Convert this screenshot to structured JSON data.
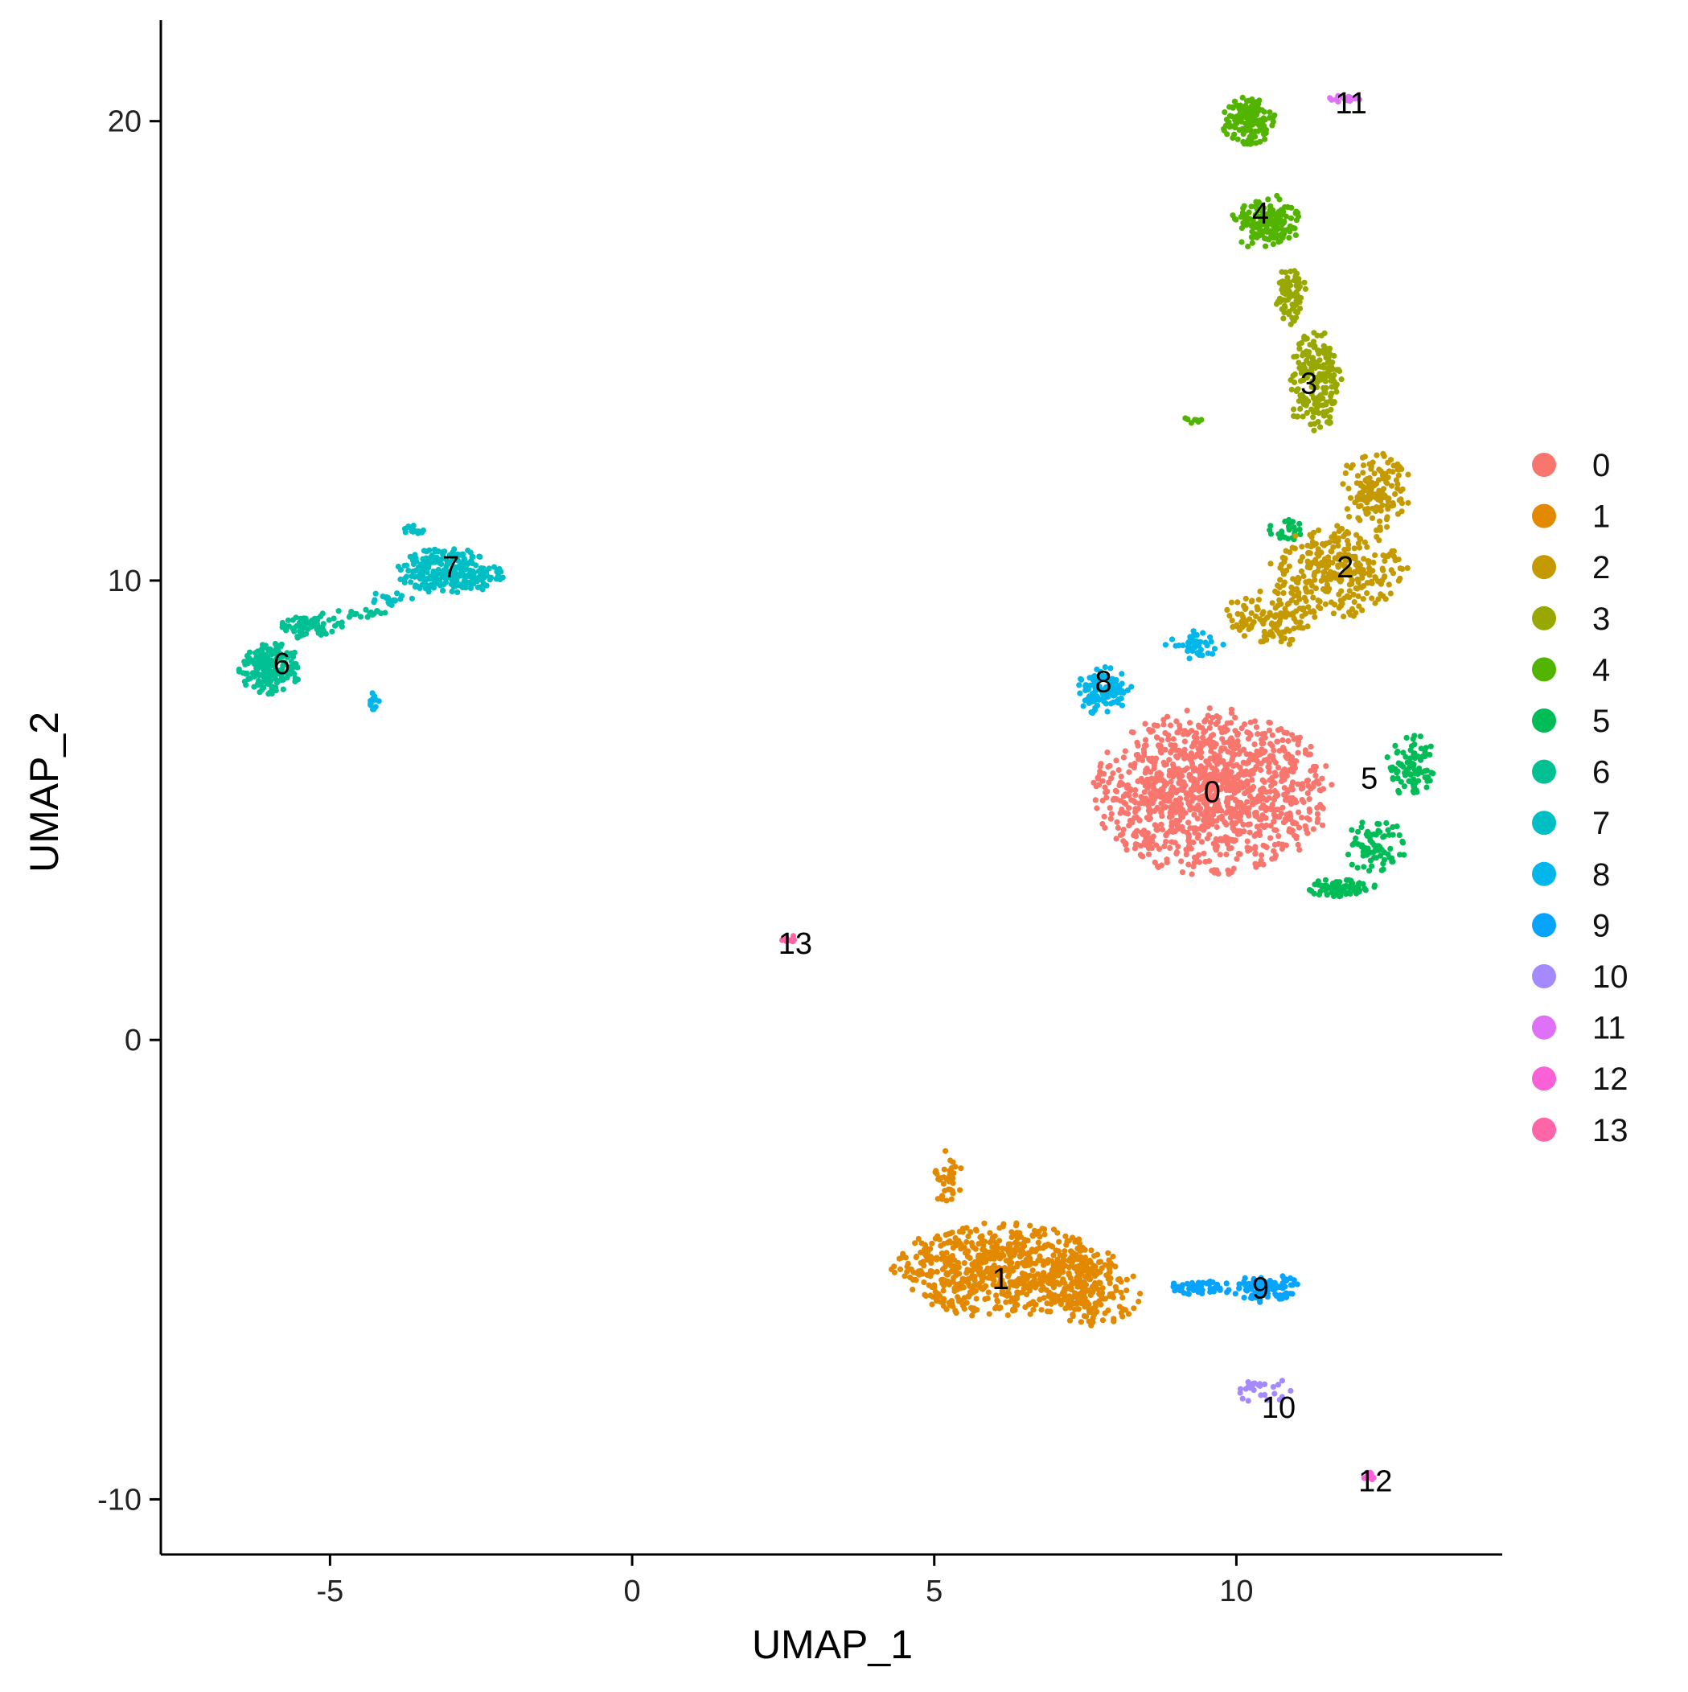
{
  "chart_data": {
    "type": "scatter",
    "title": "",
    "xlabel": "UMAP_1",
    "ylabel": "UMAP_2",
    "xlim": [
      -7.8,
      14.4
    ],
    "ylim": [
      -11.2,
      22.2
    ],
    "xticks": [
      -5,
      0,
      5,
      10
    ],
    "yticks": [
      -10,
      0,
      10,
      20
    ],
    "xtick_labels": [
      "-5",
      "0",
      "5",
      "10"
    ],
    "ytick_labels": [
      "-10",
      "0",
      "10",
      "20"
    ],
    "grid": false,
    "legend_position": "right",
    "clusters": [
      {
        "name": "0",
        "color": "#F8766D",
        "label_pos": [
          9.6,
          5.4
        ],
        "regions": [
          [
            9.6,
            5.4,
            1.9,
            1.75,
            1200
          ]
        ]
      },
      {
        "name": "1",
        "color": "#E38900",
        "label_pos": [
          6.1,
          -5.2
        ],
        "regions": [
          [
            6.1,
            -5.0,
            1.75,
            1.0,
            700
          ],
          [
            7.6,
            -5.4,
            0.8,
            0.8,
            180
          ],
          [
            5.2,
            -3.0,
            0.25,
            0.6,
            40
          ]
        ]
      },
      {
        "name": "2",
        "color": "#C49A00",
        "label_pos": [
          11.8,
          10.3
        ],
        "regions": [
          [
            11.7,
            10.2,
            1.1,
            0.95,
            300
          ],
          [
            12.3,
            12.0,
            0.55,
            0.9,
            150
          ],
          [
            10.6,
            9.2,
            0.8,
            0.6,
            120
          ]
        ]
      },
      {
        "name": "3",
        "color": "#99A800",
        "label_pos": [
          11.2,
          14.3
        ],
        "regions": [
          [
            11.3,
            14.3,
            0.45,
            1.1,
            200
          ],
          [
            10.9,
            16.2,
            0.25,
            0.6,
            80
          ]
        ]
      },
      {
        "name": "4",
        "color": "#53B400",
        "label_pos": [
          10.4,
          18.0
        ],
        "regions": [
          [
            10.2,
            20.0,
            0.45,
            0.5,
            150
          ],
          [
            10.5,
            17.8,
            0.55,
            0.6,
            160
          ],
          [
            9.3,
            13.5,
            0.15,
            0.1,
            8
          ]
        ]
      },
      {
        "name": "5",
        "color": "#00BC56",
        "label_pos": [
          12.2,
          5.7
        ],
        "regions": [
          [
            12.9,
            6.0,
            0.4,
            0.7,
            90
          ],
          [
            12.3,
            4.2,
            0.5,
            0.6,
            80
          ],
          [
            11.7,
            3.3,
            0.6,
            0.2,
            70
          ],
          [
            10.9,
            11.1,
            0.4,
            0.25,
            25
          ]
        ]
      },
      {
        "name": "6",
        "color": "#00C094",
        "label_pos": [
          -5.8,
          8.2
        ],
        "regions": [
          [
            -6.0,
            8.1,
            0.5,
            0.55,
            200
          ],
          [
            -5.3,
            9.0,
            0.5,
            0.3,
            70
          ],
          [
            -4.5,
            9.3,
            0.4,
            0.12,
            20
          ]
        ]
      },
      {
        "name": "7",
        "color": "#00BFC4",
        "label_pos": [
          -3.0,
          10.3
        ],
        "regions": [
          [
            -3.0,
            10.2,
            0.85,
            0.5,
            250
          ],
          [
            -3.6,
            11.1,
            0.2,
            0.1,
            15
          ],
          [
            -4.0,
            9.6,
            0.35,
            0.15,
            20
          ]
        ]
      },
      {
        "name": "8",
        "color": "#00B6EB",
        "label_pos": [
          7.8,
          7.8
        ],
        "regions": [
          [
            7.8,
            7.6,
            0.45,
            0.5,
            110
          ],
          [
            9.3,
            8.6,
            0.5,
            0.3,
            45
          ],
          [
            -4.3,
            7.4,
            0.12,
            0.2,
            14
          ]
        ]
      },
      {
        "name": "9",
        "color": "#06A4FF",
        "label_pos": [
          10.4,
          -5.4
        ],
        "regions": [
          [
            10.5,
            -5.4,
            0.55,
            0.3,
            110
          ],
          [
            9.4,
            -5.4,
            0.55,
            0.15,
            60
          ]
        ]
      },
      {
        "name": "10",
        "color": "#A58AFF",
        "label_pos": [
          10.7,
          -8.0
        ],
        "regions": [
          [
            10.4,
            -7.6,
            0.5,
            0.3,
            28
          ]
        ]
      },
      {
        "name": "11",
        "color": "#DF70F8",
        "label_pos": [
          11.9,
          20.4
        ],
        "regions": [
          [
            11.7,
            20.5,
            0.35,
            0.1,
            18
          ]
        ]
      },
      {
        "name": "12",
        "color": "#FB61D7",
        "label_pos": [
          12.3,
          -9.6
        ],
        "regions": [
          [
            12.2,
            -9.5,
            0.15,
            0.1,
            15
          ]
        ]
      },
      {
        "name": "13",
        "color": "#FF66A8",
        "label_pos": [
          2.7,
          2.1
        ],
        "regions": [
          [
            2.6,
            2.2,
            0.12,
            0.08,
            10
          ]
        ]
      }
    ]
  }
}
